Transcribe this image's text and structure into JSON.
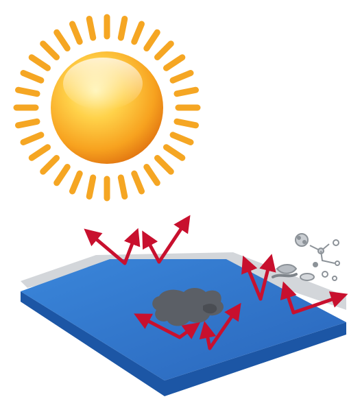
{
  "illustration": {
    "sun": {
      "icon": "sun-icon",
      "ray_color": "#f5a623",
      "core_highlight": "#ffe27a",
      "core_mid": "#f8b22b",
      "core_shadow": "#e57a12"
    },
    "surface": {
      "icon": "panel-surface-icon",
      "top_color": "#2f74c8",
      "edge_color": "#1f5aa8",
      "sheen_color": "#cfd3d8"
    },
    "contaminant": {
      "icon": "dirt-stain-icon",
      "color": "#5b5f66"
    },
    "microbes": {
      "icon": "microbes-icon",
      "color": "#9aa0a6"
    },
    "arrows": {
      "icon": "red-bounce-arrow-icon",
      "color": "#c8102e"
    }
  }
}
